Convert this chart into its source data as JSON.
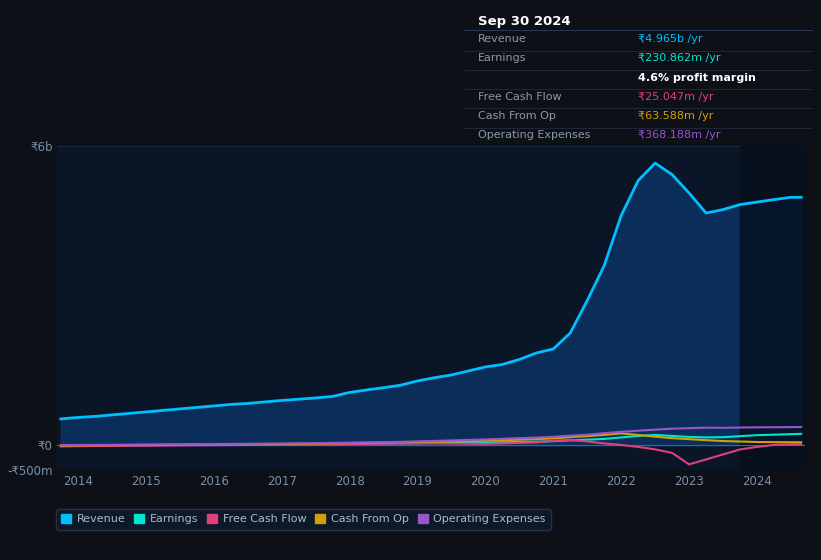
{
  "background_color": "#0d1117",
  "plot_bg_color": "#0a1628",
  "years": [
    2013.75,
    2014.0,
    2014.25,
    2014.5,
    2014.75,
    2015.0,
    2015.25,
    2015.5,
    2015.75,
    2016.0,
    2016.25,
    2016.5,
    2016.75,
    2017.0,
    2017.25,
    2017.5,
    2017.75,
    2018.0,
    2018.25,
    2018.5,
    2018.75,
    2019.0,
    2019.25,
    2019.5,
    2019.75,
    2020.0,
    2020.25,
    2020.5,
    2020.75,
    2021.0,
    2021.25,
    2021.5,
    2021.75,
    2022.0,
    2022.25,
    2022.5,
    2022.75,
    2023.0,
    2023.25,
    2023.5,
    2023.75,
    2024.0,
    2024.25,
    2024.5,
    2024.65
  ],
  "revenue": [
    530,
    560,
    580,
    610,
    640,
    670,
    700,
    730,
    760,
    790,
    820,
    840,
    870,
    900,
    925,
    950,
    980,
    1060,
    1110,
    1155,
    1205,
    1290,
    1355,
    1410,
    1490,
    1570,
    1620,
    1720,
    1850,
    1930,
    2250,
    2900,
    3600,
    4600,
    5300,
    5650,
    5420,
    5050,
    4650,
    4720,
    4820,
    4870,
    4920,
    4965,
    4965
  ],
  "earnings": [
    -5,
    -3,
    -2,
    0,
    2,
    5,
    8,
    10,
    12,
    15,
    18,
    20,
    22,
    25,
    27,
    30,
    32,
    35,
    38,
    40,
    42,
    45,
    48,
    50,
    55,
    60,
    65,
    70,
    75,
    85,
    100,
    115,
    130,
    160,
    190,
    210,
    190,
    170,
    160,
    165,
    185,
    205,
    215,
    225,
    230.862
  ],
  "free_cash_flow": [
    -20,
    -15,
    -12,
    -10,
    -8,
    -5,
    -3,
    0,
    3,
    5,
    8,
    10,
    12,
    15,
    18,
    20,
    22,
    25,
    30,
    35,
    38,
    40,
    42,
    38,
    35,
    30,
    40,
    50,
    60,
    90,
    110,
    80,
    40,
    10,
    -30,
    -80,
    -150,
    -380,
    -280,
    -180,
    -80,
    -30,
    10,
    22,
    25.047
  ],
  "cash_from_op": [
    -5,
    0,
    3,
    5,
    8,
    10,
    12,
    15,
    18,
    20,
    22,
    25,
    28,
    30,
    33,
    38,
    42,
    48,
    52,
    58,
    65,
    70,
    75,
    80,
    85,
    95,
    105,
    115,
    125,
    140,
    165,
    185,
    210,
    240,
    210,
    175,
    145,
    125,
    105,
    88,
    78,
    68,
    65,
    64,
    63.588
  ],
  "operating_expenses": [
    5,
    8,
    10,
    12,
    15,
    18,
    20,
    22,
    25,
    28,
    30,
    33,
    36,
    38,
    42,
    46,
    50,
    55,
    60,
    65,
    72,
    80,
    90,
    100,
    110,
    120,
    132,
    145,
    158,
    172,
    195,
    215,
    245,
    272,
    295,
    315,
    335,
    345,
    355,
    352,
    358,
    362,
    364,
    366,
    368.188
  ],
  "revenue_color": "#00bfff",
  "earnings_color": "#00e5cc",
  "fcf_color": "#e0407a",
  "cash_op_color": "#d4a000",
  "opex_color": "#9955cc",
  "revenue_fill_color": "#0a2d5a",
  "ylim": [
    -500,
    6000
  ],
  "ytick_vals": [
    -500,
    0,
    6000
  ],
  "ytick_labels": [
    "-₹500m",
    "₹0",
    "₹6b"
  ],
  "xlabel_ticks": [
    2014,
    2015,
    2016,
    2017,
    2018,
    2019,
    2020,
    2021,
    2022,
    2023,
    2024
  ],
  "grid_color": "#1a2e4a",
  "shade_start": 2023.75,
  "shade_color": "#060e1a",
  "table_date": "Sep 30 2024",
  "table_rows": [
    {
      "label": "Revenue",
      "value": "₹4.965b /yr",
      "vcolor": "#00bfff",
      "lcolor": "#8899aa"
    },
    {
      "label": "Earnings",
      "value": "₹230.862m /yr",
      "vcolor": "#00e5cc",
      "lcolor": "#8899aa"
    },
    {
      "label": "",
      "value": "4.6% profit margin",
      "vcolor": "#ffffff",
      "lcolor": "#8899aa"
    },
    {
      "label": "Free Cash Flow",
      "value": "₹25.047m /yr",
      "vcolor": "#e0407a",
      "lcolor": "#8899aa"
    },
    {
      "label": "Cash From Op",
      "value": "₹63.588m /yr",
      "vcolor": "#d4a000",
      "lcolor": "#8899aa"
    },
    {
      "label": "Operating Expenses",
      "value": "₹368.188m /yr",
      "vcolor": "#9955cc",
      "lcolor": "#8899aa"
    }
  ],
  "legend_items": [
    {
      "label": "Revenue",
      "color": "#00bfff"
    },
    {
      "label": "Earnings",
      "color": "#00e5cc"
    },
    {
      "label": "Free Cash Flow",
      "color": "#e0407a"
    },
    {
      "label": "Cash From Op",
      "color": "#d4a000"
    },
    {
      "label": "Operating Expenses",
      "color": "#9955cc"
    }
  ]
}
